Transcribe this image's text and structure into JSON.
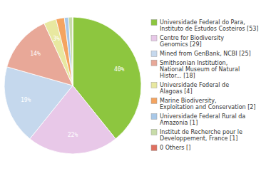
{
  "chart_data": {
    "type": "pie",
    "categories": [
      "Universidade Federal do Para,\nInstituto de Estudos Costeiros [53]",
      "Centre for Biodiversity\nGenomics [29]",
      "Mined from GenBank, NCBI [25]",
      "Smithsonian Institution,\nNational Museum of Natural\nHistor... [18]",
      "Universidade Federal de\nAlagoas [4]",
      "Marine Biodiversity,\nExploitation and Conservation [2]",
      "Universidade Federal Rural da\nAmazonia [1]",
      "Institut de Recherche pour le\nDeveloppement, France [1]",
      "0 Others []"
    ],
    "values": [
      40,
      22,
      19,
      14,
      3,
      2,
      1,
      1,
      0
    ],
    "value_labels": [
      "40%",
      "22%",
      "19%",
      "14%",
      "3%",
      null,
      null,
      null,
      null
    ],
    "colors": [
      "#8dc63f",
      "#e8c8e8",
      "#c5d8ed",
      "#e8a898",
      "#e8e8a0",
      "#f4a460",
      "#a8c8e8",
      "#c8dca8",
      "#e07060"
    ],
    "data_labels": true,
    "legend": "right"
  }
}
